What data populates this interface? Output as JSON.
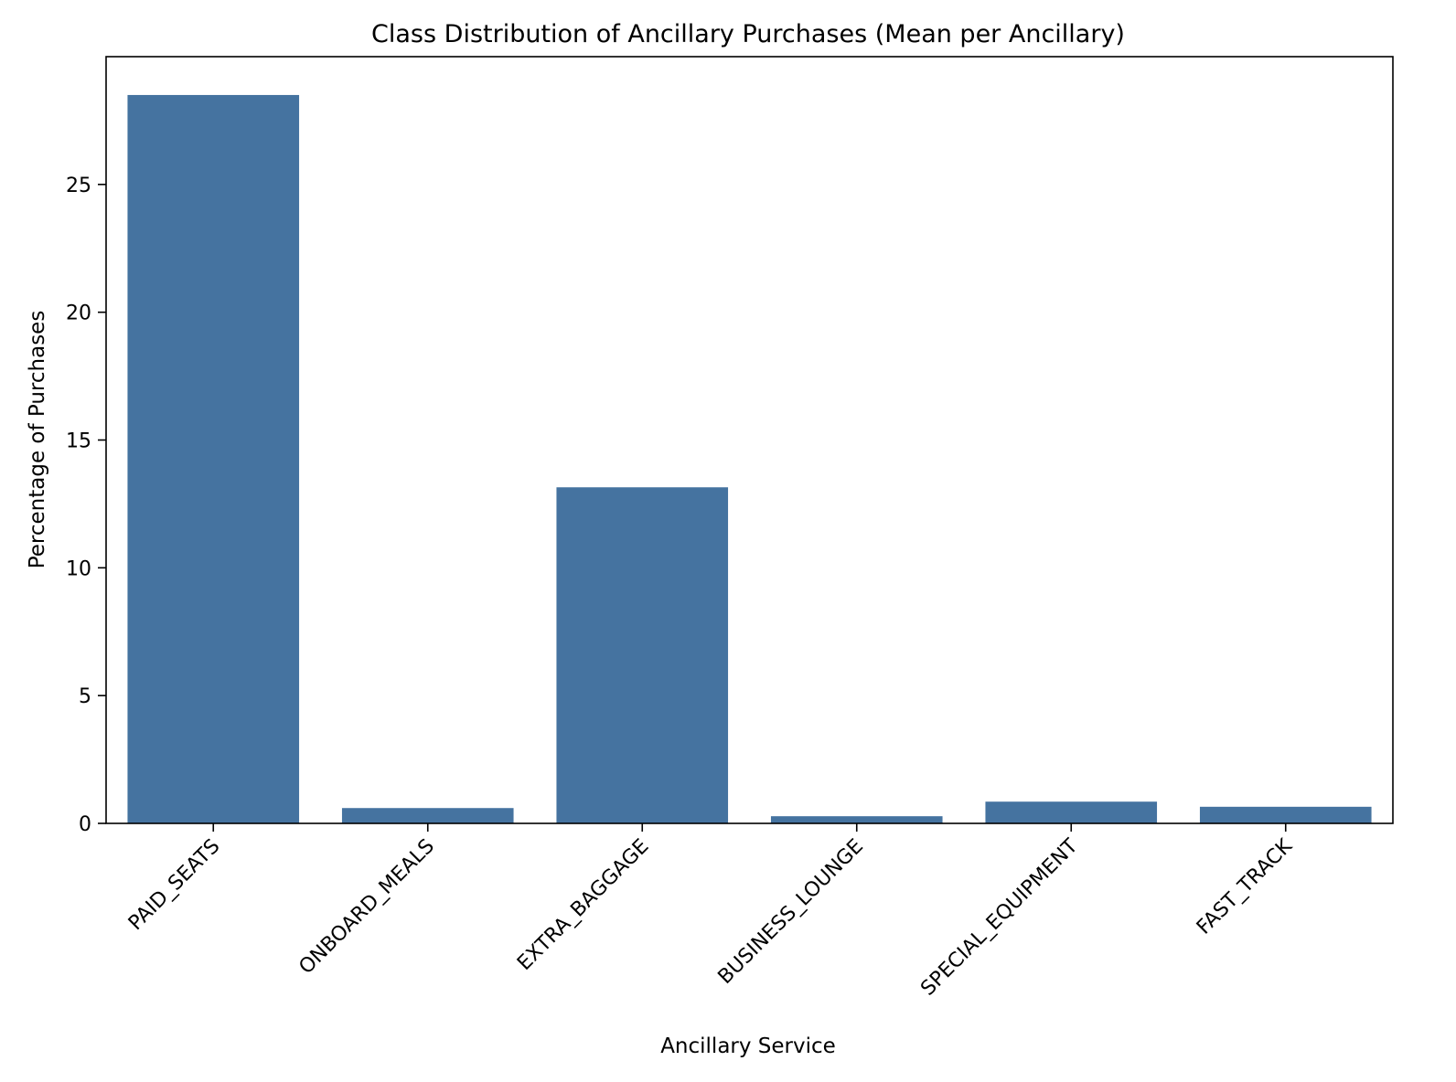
{
  "chart_data": {
    "type": "bar",
    "title": "Class Distribution of Ancillary Purchases (Mean per Ancillary)",
    "xlabel": "Ancillary Service",
    "ylabel": "Percentage of Purchases",
    "categories": [
      "PAID_SEATS",
      "ONBOARD_MEALS",
      "EXTRA_BAGGAGE",
      "BUSINESS_LOUNGE",
      "SPECIAL_EQUIPMENT",
      "FAST_TRACK"
    ],
    "values": [
      28.5,
      0.6,
      13.15,
      0.28,
      0.85,
      0.65
    ],
    "ylim": [
      0,
      30
    ],
    "yticks": [
      0,
      5,
      10,
      15,
      20,
      25
    ],
    "ytick_labels": [
      "0",
      "5",
      "10",
      "15",
      "20",
      "25"
    ],
    "grid": false,
    "bar_color": "#4573a0"
  }
}
